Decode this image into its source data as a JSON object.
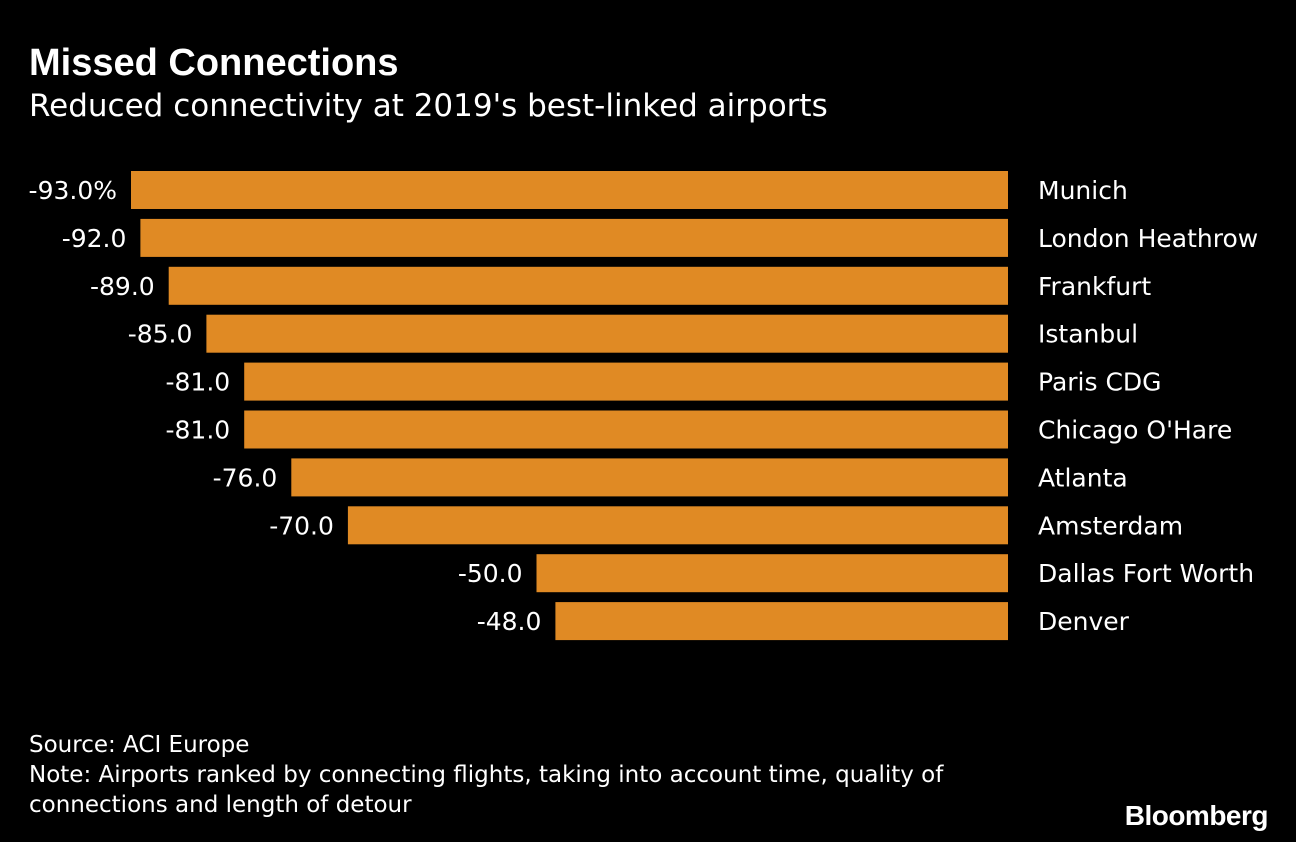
{
  "title": "Missed Connections",
  "subtitle": "Reduced connectivity at 2019's best-linked airports",
  "chart_data": {
    "type": "bar",
    "orientation": "horizontal",
    "title": "Missed Connections",
    "subtitle": "Reduced connectivity at 2019's best-linked airports",
    "categories": [
      "Munich",
      "London Heathrow",
      "Frankfurt",
      "Istanbul",
      "Paris CDG",
      "Chicago O'Hare",
      "Atlanta",
      "Amsterdam",
      "Dallas Fort Worth",
      "Denver"
    ],
    "values": [
      -93.0,
      -92.0,
      -89.0,
      -85.0,
      -81.0,
      -81.0,
      -76.0,
      -70.0,
      -50.0,
      -48.0
    ],
    "value_labels": [
      "-93.0%",
      "-92.0",
      "-89.0",
      "-85.0",
      "-81.0",
      "-81.0",
      "-76.0",
      "-70.0",
      "-50.0",
      "-48.0"
    ],
    "unit": "%",
    "xlim": [
      -93,
      0
    ],
    "bar_color": "#e08a24",
    "grid": false,
    "legend": "none"
  },
  "footer": {
    "source": "Source: ACI Europe",
    "note_line1": "Note: Airports ranked by connecting flights, taking into account time, quality of",
    "note_line2": "connections and length of detour"
  },
  "brand": "Bloomberg"
}
